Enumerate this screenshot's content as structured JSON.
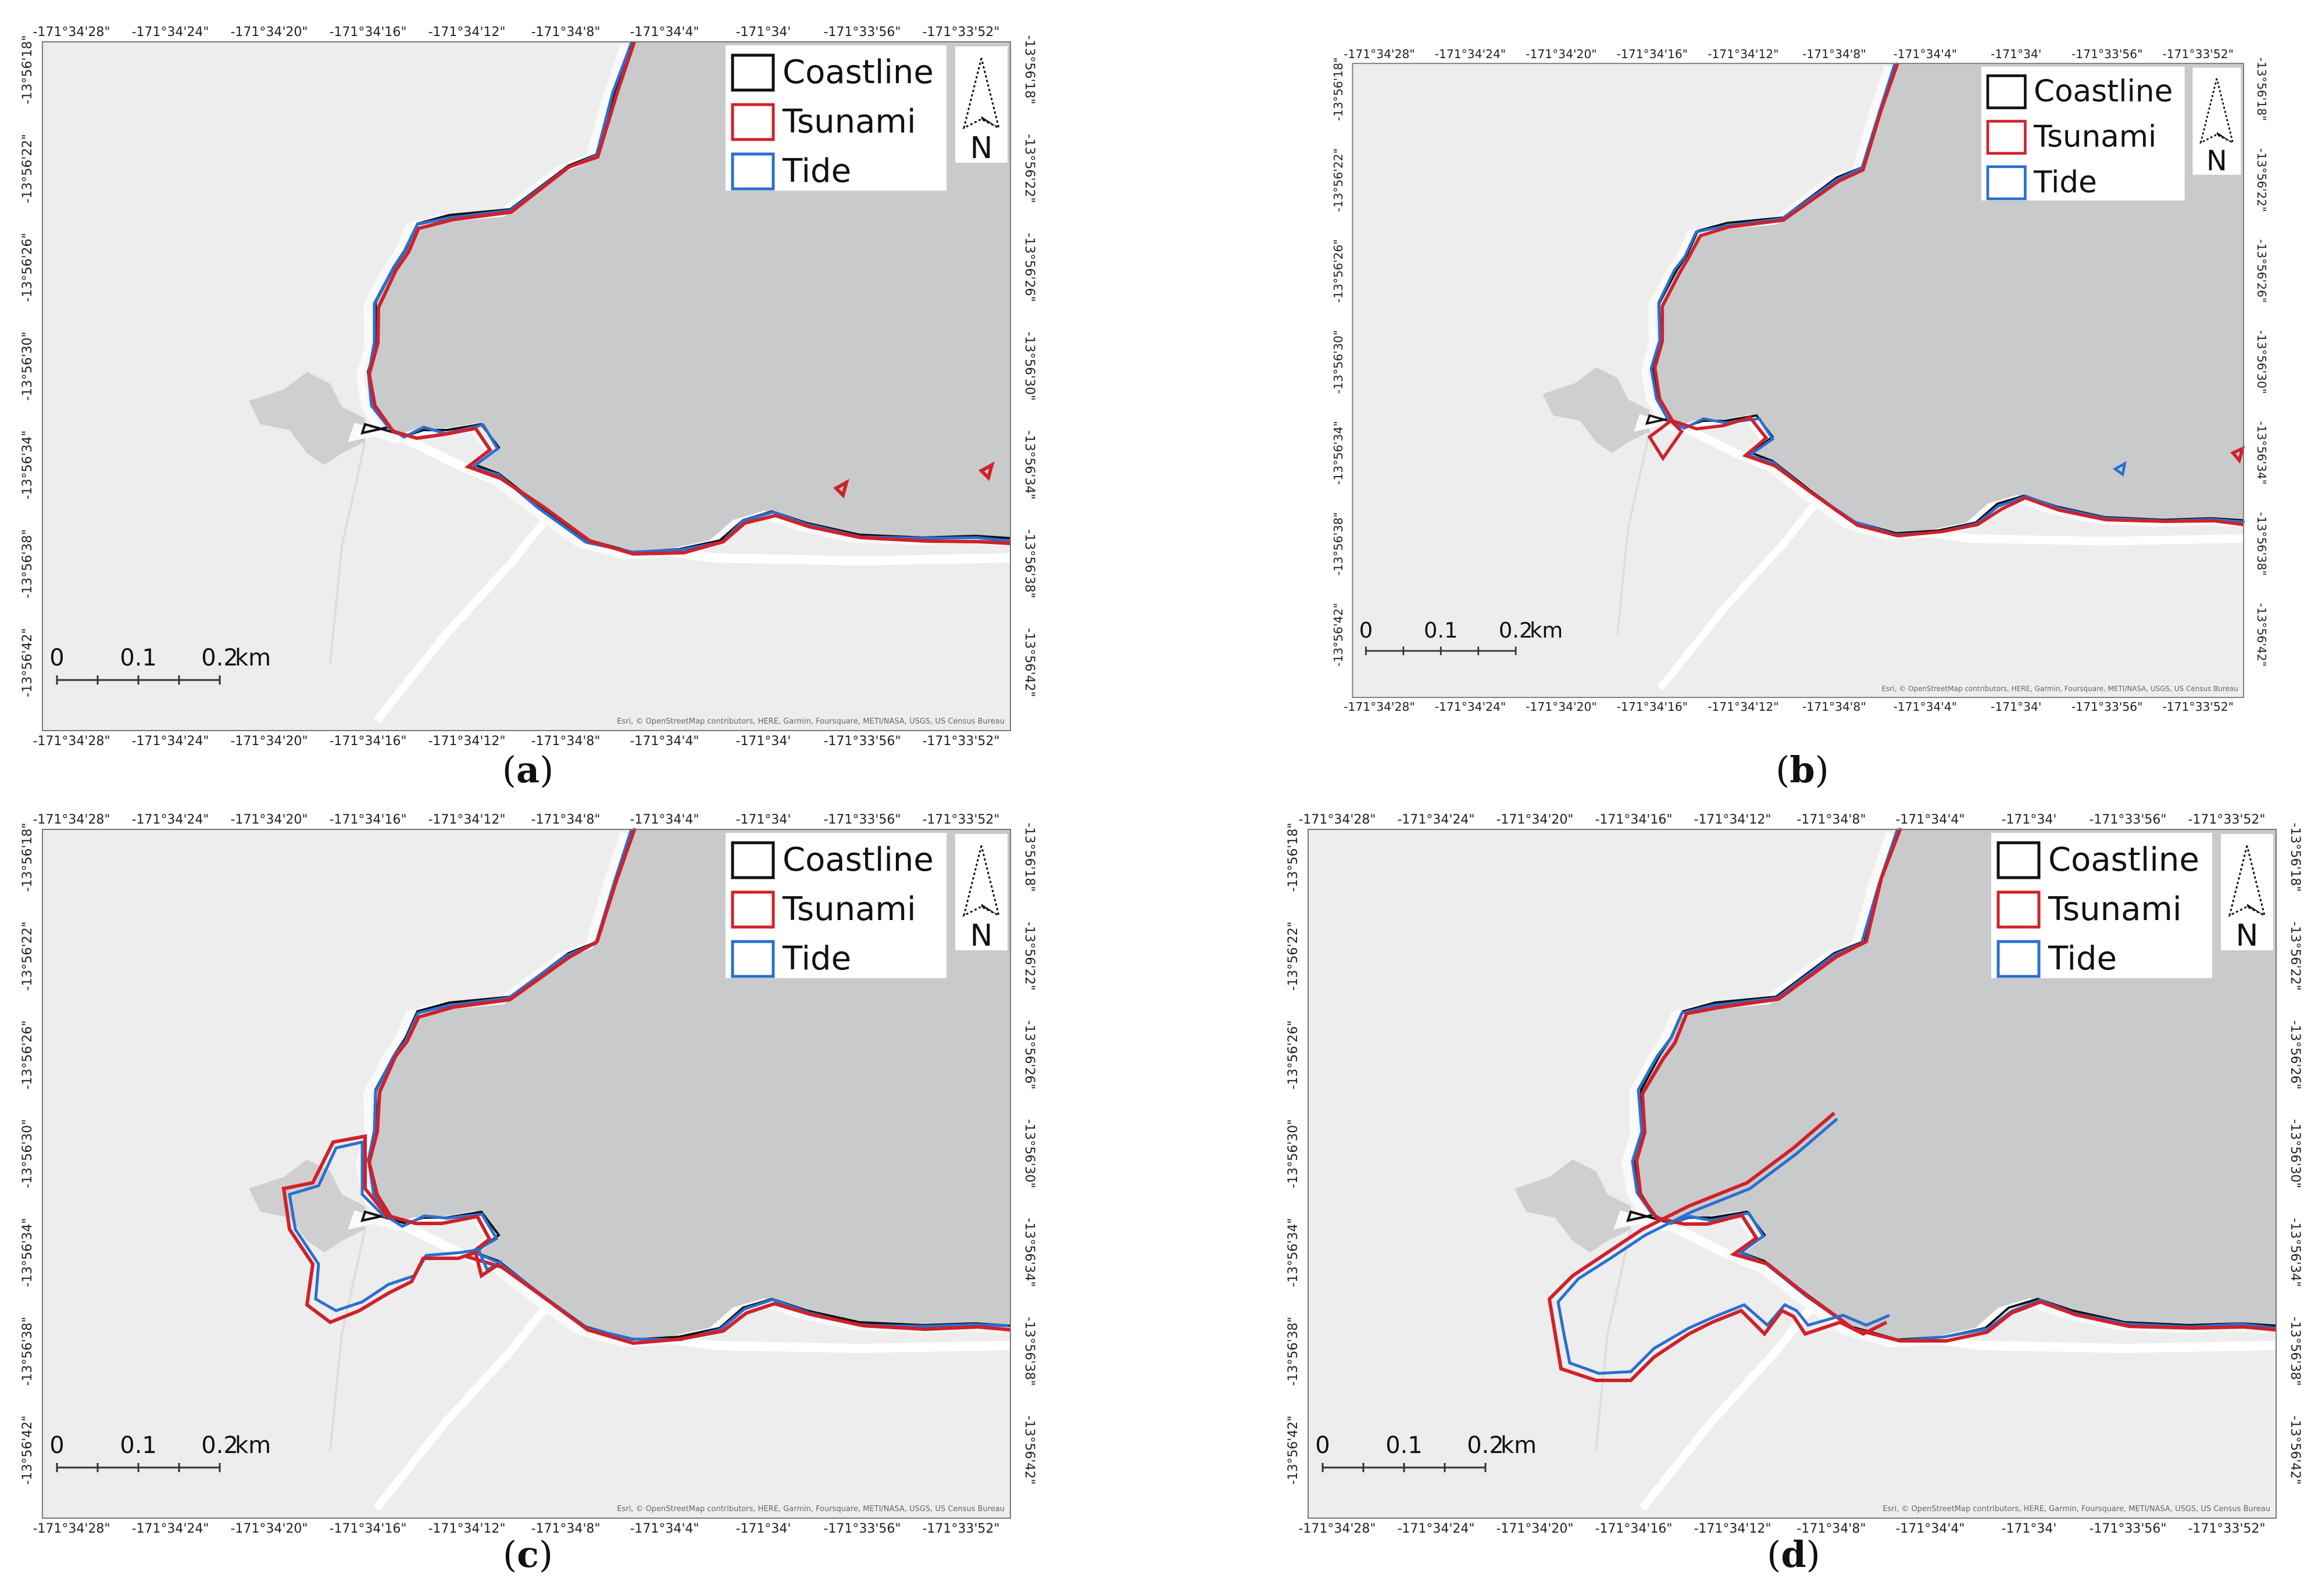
{
  "figure": {
    "panels": [
      {
        "label": "a",
        "legend": {
          "coastline": "Coastline",
          "tsunami": "Tsunami",
          "tide": "Tide"
        },
        "north_label": "N",
        "scale": {
          "ticks": [
            "0",
            "0.1",
            "0.2"
          ],
          "unit": "km"
        },
        "lon_ticks": [
          "-171°34'28\"",
          "-171°34'24\"",
          "-171°34'20\"",
          "-171°34'16\"",
          "-171°34'12\"",
          "-171°34'8\"",
          "-171°34'4\"",
          "-171°34'",
          "-171°33'56\"",
          "-171°33'52\""
        ],
        "lat_ticks": [
          "-13°56'18\"",
          "-13°56'22\"",
          "-13°56'26\"",
          "-13°56'30\"",
          "-13°56'34\"",
          "-13°56'38\"",
          "-13°56'42\""
        ],
        "attribution": "Esri, © OpenStreetMap contributors, HERE, Garmin, Foursquare, METI/NASA, USGS, US Census Bureau"
      },
      {
        "label": "b",
        "legend": {
          "coastline": "Coastline",
          "tsunami": "Tsunami",
          "tide": "Tide"
        },
        "north_label": "N",
        "scale": {
          "ticks": [
            "0",
            "0.1",
            "0.2"
          ],
          "unit": "km"
        },
        "lon_ticks": [
          "-171°34'28\"",
          "-171°34'24\"",
          "-171°34'20\"",
          "-171°34'16\"",
          "-171°34'12\"",
          "-171°34'8\"",
          "-171°34'4\"",
          "-171°34'",
          "-171°33'56\"",
          "-171°33'52\""
        ],
        "lat_ticks": [
          "-13°56'18\"",
          "-13°56'22\"",
          "-13°56'26\"",
          "-13°56'30\"",
          "-13°56'34\"",
          "-13°56'38\"",
          "-13°56'42\""
        ],
        "attribution": "Esri, © OpenStreetMap contributors, HERE, Garmin, Foursquare, METI/NASA, USGS, US Census Bureau"
      },
      {
        "label": "c",
        "legend": {
          "coastline": "Coastline",
          "tsunami": "Tsunami",
          "tide": "Tide"
        },
        "north_label": "N",
        "scale": {
          "ticks": [
            "0",
            "0.1",
            "0.2"
          ],
          "unit": "km"
        },
        "lon_ticks": [
          "-171°34'28\"",
          "-171°34'24\"",
          "-171°34'20\"",
          "-171°34'16\"",
          "-171°34'12\"",
          "-171°34'8\"",
          "-171°34'4\"",
          "-171°34'",
          "-171°33'56\"",
          "-171°33'52\""
        ],
        "lat_ticks": [
          "-13°56'18\"",
          "-13°56'22\"",
          "-13°56'26\"",
          "-13°56'30\"",
          "-13°56'34\"",
          "-13°56'38\"",
          "-13°56'42\""
        ],
        "attribution": "Esri, © OpenStreetMap contributors, HERE, Garmin, Foursquare, METI/NASA, USGS, US Census Bureau"
      },
      {
        "label": "d",
        "legend": {
          "coastline": "Coastline",
          "tsunami": "Tsunami",
          "tide": "Tide"
        },
        "north_label": "N",
        "scale": {
          "ticks": [
            "0",
            "0.1",
            "0.2"
          ],
          "unit": "km"
        },
        "lon_ticks": [
          "-171°34'28\"",
          "-171°34'24\"",
          "-171°34'20\"",
          "-171°34'16\"",
          "-171°34'12\"",
          "-171°34'8\"",
          "-171°34'4\"",
          "-171°34'",
          "-171°33'56\"",
          "-171°33'52\""
        ],
        "lat_ticks": [
          "-13°56'18\"",
          "-13°56'22\"",
          "-13°56'26\"",
          "-13°56'30\"",
          "-13°56'34\"",
          "-13°56'38\"",
          "-13°56'42\""
        ],
        "attribution": "Esri, © OpenStreetMap contributors, HERE, Garmin, Foursquare, METI/NASA, USGS, US Census Bureau"
      }
    ],
    "colors": {
      "coastline": "#111111",
      "tsunami": "#d0212a",
      "tide": "#2a6fd0",
      "sea": "#c9cacb",
      "land": "#ededed",
      "road": "#ffffff",
      "lagoon": "#cfcfcf"
    }
  }
}
